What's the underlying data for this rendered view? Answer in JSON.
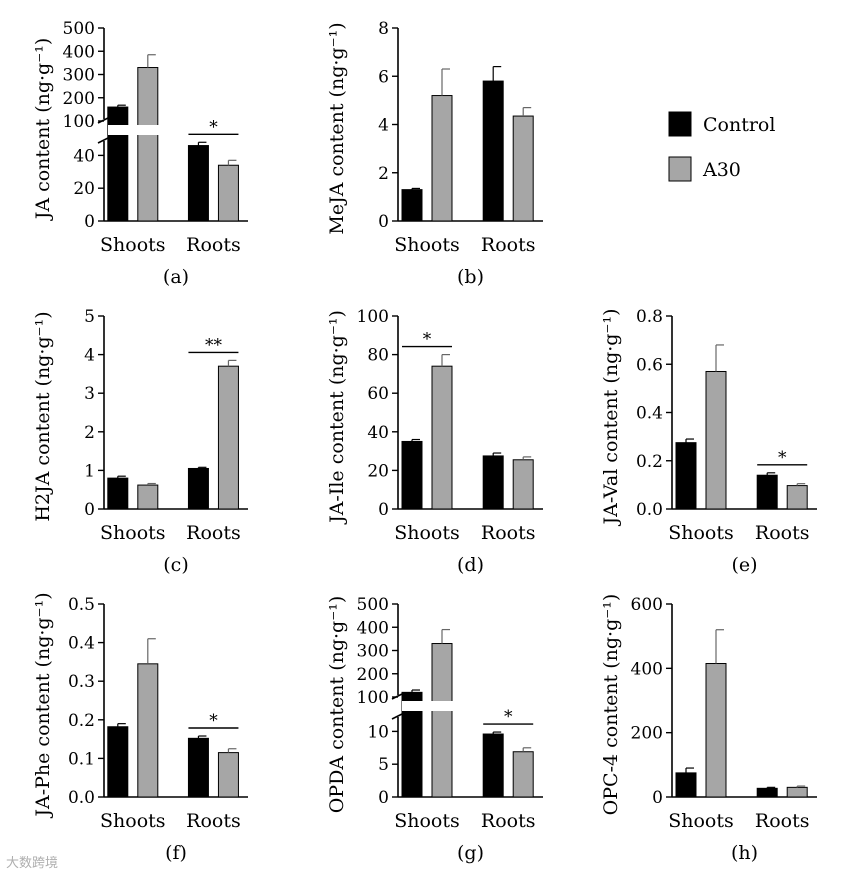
{
  "watermark": "大数跨境",
  "legend": {
    "entries": [
      {
        "label": "Control",
        "color": "#000000"
      },
      {
        "label": "A30",
        "color": "#a6a6a6"
      }
    ],
    "placement": "right"
  },
  "colors": {
    "control": "#000000",
    "a30": "#a6a6a6"
  },
  "chart_data": [
    {
      "panel": "(a)",
      "type": "bar",
      "ylabel": "JA content (ng·g⁻¹)",
      "categories": [
        "Shoots",
        "Roots"
      ],
      "broken_axis": true,
      "ylim_lower": [
        0,
        50
      ],
      "yticks_lower": [
        0,
        20,
        40
      ],
      "ylim_upper": [
        100,
        500
      ],
      "yticks_upper": [
        100,
        200,
        300,
        400,
        500
      ],
      "series": [
        {
          "name": "Control",
          "values": [
            160,
            46
          ],
          "errors": [
            8,
            2
          ]
        },
        {
          "name": "A30",
          "values": [
            330,
            34
          ],
          "errors": [
            55,
            3
          ]
        }
      ],
      "significance": [
        {
          "category": "Roots",
          "mark": "*"
        }
      ]
    },
    {
      "panel": "(b)",
      "type": "bar",
      "ylabel": "MeJA content (ng·g⁻¹)",
      "categories": [
        "Shoots",
        "Roots"
      ],
      "ylim": [
        0,
        8
      ],
      "yticks": [
        0,
        2,
        4,
        6,
        8
      ],
      "series": [
        {
          "name": "Control",
          "values": [
            1.3,
            5.8
          ],
          "errors": [
            0.05,
            0.6
          ]
        },
        {
          "name": "A30",
          "values": [
            5.2,
            4.35
          ],
          "errors": [
            1.1,
            0.35
          ]
        }
      ],
      "significance": []
    },
    {
      "panel": "(c)",
      "type": "bar",
      "ylabel": "H2JA content (ng·g⁻¹)",
      "categories": [
        "Shoots",
        "Roots"
      ],
      "ylim": [
        0,
        5
      ],
      "yticks": [
        0,
        1,
        2,
        3,
        4,
        5
      ],
      "series": [
        {
          "name": "Control",
          "values": [
            0.8,
            1.05
          ],
          "errors": [
            0.05,
            0.03
          ]
        },
        {
          "name": "A30",
          "values": [
            0.62,
            3.7
          ],
          "errors": [
            0.04,
            0.15
          ]
        }
      ],
      "significance": [
        {
          "category": "Roots",
          "mark": "**"
        }
      ]
    },
    {
      "panel": "(d)",
      "type": "bar",
      "ylabel": "JA-Ile content (ng·g⁻¹)",
      "categories": [
        "Shoots",
        "Roots"
      ],
      "ylim": [
        0,
        100
      ],
      "yticks": [
        0,
        20,
        40,
        60,
        80,
        100
      ],
      "series": [
        {
          "name": "Control",
          "values": [
            35,
            27.5
          ],
          "errors": [
            1,
            1.5
          ]
        },
        {
          "name": "A30",
          "values": [
            74,
            25.5
          ],
          "errors": [
            6,
            1.5
          ]
        }
      ],
      "significance": [
        {
          "category": "Shoots",
          "mark": "*"
        }
      ]
    },
    {
      "panel": "(e)",
      "type": "bar",
      "ylabel": "JA-Val content (ng·g⁻¹)",
      "categories": [
        "Shoots",
        "Roots"
      ],
      "ylim": [
        0,
        0.8
      ],
      "yticks": [
        0.0,
        0.2,
        0.4,
        0.6,
        0.8
      ],
      "ytick_labels": [
        "0.0",
        "0.2",
        "0.4",
        "0.6",
        "0.8"
      ],
      "series": [
        {
          "name": "Control",
          "values": [
            0.275,
            0.14
          ],
          "errors": [
            0.015,
            0.01
          ]
        },
        {
          "name": "A30",
          "values": [
            0.57,
            0.097
          ],
          "errors": [
            0.11,
            0.008
          ]
        }
      ],
      "significance": [
        {
          "category": "Roots",
          "mark": "*"
        }
      ]
    },
    {
      "panel": "(f)",
      "type": "bar",
      "ylabel": "JA-Phe content (ng·g⁻¹)",
      "categories": [
        "Shoots",
        "Roots"
      ],
      "ylim": [
        0,
        0.5
      ],
      "yticks": [
        0.0,
        0.1,
        0.2,
        0.3,
        0.4,
        0.5
      ],
      "ytick_labels": [
        "0.0",
        "0.1",
        "0.2",
        "0.3",
        "0.4",
        "0.5"
      ],
      "series": [
        {
          "name": "Control",
          "values": [
            0.182,
            0.152
          ],
          "errors": [
            0.008,
            0.006
          ]
        },
        {
          "name": "A30",
          "values": [
            0.345,
            0.115
          ],
          "errors": [
            0.065,
            0.01
          ]
        }
      ],
      "significance": [
        {
          "category": "Roots",
          "mark": "*"
        }
      ]
    },
    {
      "panel": "(g)",
      "type": "bar",
      "ylabel": "OPDA content (ng·g⁻¹)",
      "categories": [
        "Shoots",
        "Roots"
      ],
      "broken_axis": true,
      "ylim_lower": [
        0,
        12.5
      ],
      "yticks_lower": [
        0,
        5,
        10
      ],
      "ylim_upper": [
        100,
        500
      ],
      "yticks_upper": [
        100,
        200,
        300,
        400,
        500
      ],
      "series": [
        {
          "name": "Control",
          "values": [
            120,
            9.6
          ],
          "errors": [
            10,
            0.3
          ]
        },
        {
          "name": "A30",
          "values": [
            330,
            6.9
          ],
          "errors": [
            60,
            0.6
          ]
        }
      ],
      "significance": [
        {
          "category": "Roots",
          "mark": "*"
        }
      ]
    },
    {
      "panel": "(h)",
      "type": "bar",
      "ylabel": "OPC-4 content (ng·g⁻¹)",
      "categories": [
        "Shoots",
        "Roots"
      ],
      "ylim": [
        0,
        600
      ],
      "yticks": [
        0,
        200,
        400,
        600
      ],
      "series": [
        {
          "name": "Control",
          "values": [
            75,
            27
          ],
          "errors": [
            15,
            3
          ]
        },
        {
          "name": "A30",
          "values": [
            415,
            30
          ],
          "errors": [
            105,
            4
          ]
        }
      ],
      "significance": []
    }
  ]
}
